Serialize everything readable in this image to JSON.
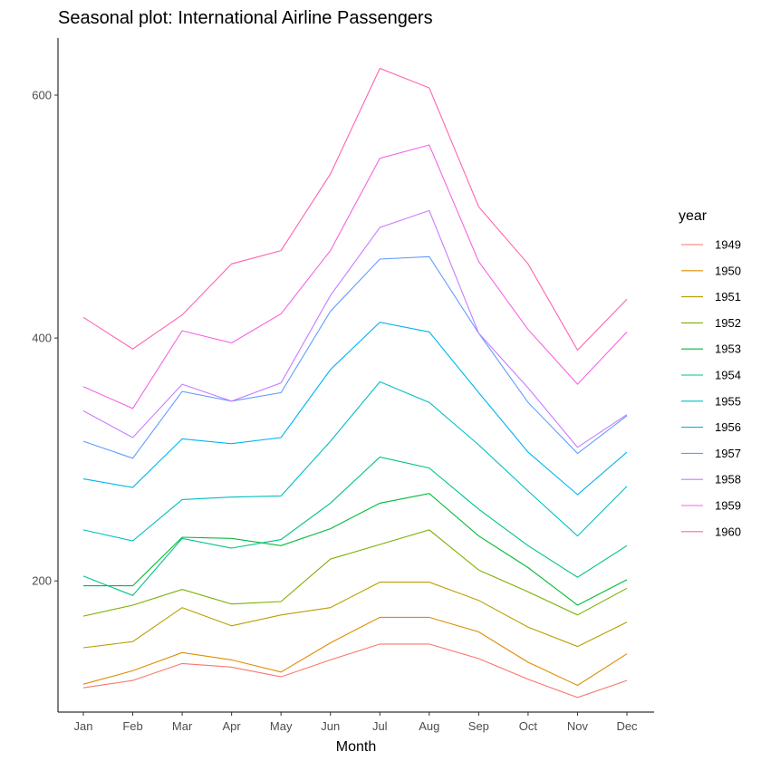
{
  "chart_data": {
    "type": "line",
    "title": "Seasonal plot: International Airline Passengers",
    "xlabel": "Month",
    "ylabel": "",
    "categories": [
      "Jan",
      "Feb",
      "Mar",
      "Apr",
      "May",
      "Jun",
      "Jul",
      "Aug",
      "Sep",
      "Oct",
      "Nov",
      "Dec"
    ],
    "ylim": [
      92,
      647
    ],
    "yticks": [
      200,
      400,
      600
    ],
    "grid": false,
    "legend": {
      "title": "year",
      "position": "right"
    },
    "series": [
      {
        "name": "1949",
        "color": "#F8766D",
        "values": [
          112,
          118,
          132,
          129,
          121,
          135,
          148,
          148,
          136,
          119,
          104,
          118
        ]
      },
      {
        "name": "1950",
        "color": "#DE8C00",
        "values": [
          115,
          126,
          141,
          135,
          125,
          149,
          170,
          170,
          158,
          133,
          114,
          140
        ]
      },
      {
        "name": "1951",
        "color": "#B79F00",
        "values": [
          145,
          150,
          178,
          163,
          172,
          178,
          199,
          199,
          184,
          162,
          146,
          166
        ]
      },
      {
        "name": "1952",
        "color": "#7CAE00",
        "values": [
          171,
          180,
          193,
          181,
          183,
          218,
          230,
          242,
          209,
          191,
          172,
          194
        ]
      },
      {
        "name": "1953",
        "color": "#00BA38",
        "values": [
          196,
          196,
          236,
          235,
          229,
          243,
          264,
          272,
          237,
          211,
          180,
          201
        ]
      },
      {
        "name": "1954",
        "color": "#00C08B",
        "values": [
          204,
          188,
          235,
          227,
          234,
          264,
          302,
          293,
          259,
          229,
          203,
          229
        ]
      },
      {
        "name": "1955",
        "color": "#00BFC4",
        "values": [
          242,
          233,
          267,
          269,
          270,
          315,
          364,
          347,
          312,
          274,
          237,
          278
        ]
      },
      {
        "name": "1956",
        "color": "#00B4F0",
        "values": [
          284,
          277,
          317,
          313,
          318,
          374,
          413,
          405,
          355,
          306,
          271,
          306
        ]
      },
      {
        "name": "1957",
        "color": "#619CFF",
        "values": [
          315,
          301,
          356,
          348,
          355,
          422,
          465,
          467,
          404,
          347,
          305,
          336
        ]
      },
      {
        "name": "1958",
        "color": "#C77CFF",
        "values": [
          340,
          318,
          362,
          348,
          363,
          435,
          491,
          505,
          404,
          359,
          310,
          337
        ]
      },
      {
        "name": "1959",
        "color": "#F564E3",
        "values": [
          360,
          342,
          406,
          396,
          420,
          472,
          548,
          559,
          463,
          407,
          362,
          405
        ]
      },
      {
        "name": "1960",
        "color": "#FF64B0",
        "values": [
          417,
          391,
          419,
          461,
          472,
          535,
          622,
          606,
          508,
          461,
          390,
          432
        ]
      }
    ]
  }
}
